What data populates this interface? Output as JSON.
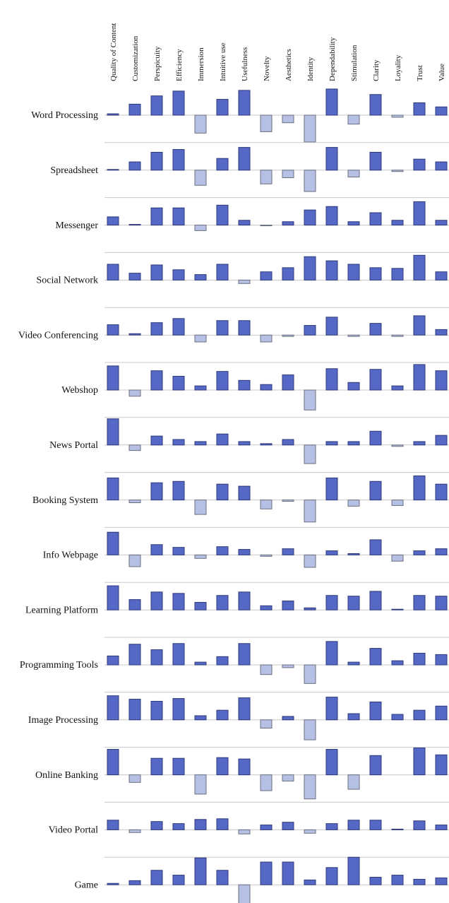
{
  "chart_data": {
    "type": "bar",
    "categories": [
      "Quality of Content",
      "Customization",
      "Perspicuity",
      "Efficiency",
      "Immersion",
      "Intuitive use",
      "Usefulness",
      "Novelty",
      "Aesthetics",
      "Identity",
      "Dependability",
      "Stimulation",
      "Clarity",
      "Loyality",
      "Trust",
      "Value"
    ],
    "color": "#5568c6",
    "negative_color": "#b5c0e4",
    "ylim": [
      -4,
      4
    ],
    "series": [
      {
        "name": "Word Processing",
        "values": [
          0.2,
          1.6,
          2.8,
          3.5,
          -2.6,
          2.3,
          3.6,
          -2.4,
          -1.1,
          -3.9,
          3.8,
          -1.3,
          3.0,
          -0.3,
          1.8,
          1.2
        ]
      },
      {
        "name": "Spreadsheet",
        "values": [
          0.1,
          1.2,
          2.6,
          3.0,
          -2.2,
          1.7,
          3.3,
          -2.0,
          -1.1,
          -3.1,
          3.3,
          -1.0,
          2.6,
          -0.2,
          1.6,
          1.2
        ]
      },
      {
        "name": "Messenger",
        "values": [
          1.2,
          0.1,
          2.5,
          2.5,
          -0.8,
          2.9,
          0.7,
          -0.1,
          0.5,
          2.2,
          2.7,
          0.5,
          1.8,
          0.7,
          3.4,
          0.7
        ]
      },
      {
        "name": "Social Network",
        "values": [
          2.3,
          1.0,
          2.2,
          1.5,
          0.8,
          2.3,
          -0.5,
          1.2,
          1.8,
          3.4,
          2.8,
          2.3,
          1.8,
          1.7,
          3.6,
          1.2
        ]
      },
      {
        "name": "Video Conferencing",
        "values": [
          1.5,
          0.2,
          1.8,
          2.4,
          -1.0,
          2.1,
          2.1,
          -1.0,
          -0.2,
          1.4,
          2.6,
          -0.2,
          1.7,
          -0.2,
          2.8,
          0.8
        ]
      },
      {
        "name": "Webshop",
        "values": [
          3.5,
          -0.9,
          2.8,
          2.0,
          0.6,
          2.7,
          1.4,
          0.8,
          2.2,
          -2.9,
          3.1,
          1.1,
          3.0,
          0.6,
          3.7,
          2.8
        ]
      },
      {
        "name": "News Portal",
        "values": [
          3.8,
          -0.8,
          1.3,
          0.8,
          0.5,
          1.6,
          0.5,
          0.2,
          0.8,
          -2.7,
          0.5,
          0.5,
          2.0,
          -0.2,
          0.5,
          1.4
        ]
      },
      {
        "name": "Booking System",
        "values": [
          3.2,
          -0.4,
          2.5,
          2.7,
          -2.1,
          2.3,
          2.0,
          -1.3,
          -0.2,
          -3.2,
          3.2,
          -0.9,
          2.7,
          -0.8,
          3.5,
          2.3
        ]
      },
      {
        "name": "Info Webpage",
        "values": [
          3.3,
          -1.7,
          1.5,
          1.1,
          -0.5,
          1.2,
          0.8,
          -0.2,
          0.9,
          -1.8,
          0.6,
          0.2,
          2.2,
          -0.9,
          0.6,
          0.9
        ]
      },
      {
        "name": "Learning Platform",
        "values": [
          3.5,
          1.5,
          2.6,
          2.4,
          1.1,
          2.1,
          2.6,
          0.6,
          1.3,
          0.3,
          2.1,
          2.0,
          2.7,
          0.1,
          2.1,
          2.0
        ]
      },
      {
        "name": "Programming Tools",
        "values": [
          1.3,
          3.0,
          2.2,
          3.1,
          0.4,
          1.2,
          3.1,
          -1.4,
          -0.4,
          -2.7,
          3.4,
          0.4,
          2.4,
          0.6,
          1.7,
          1.5
        ]
      },
      {
        "name": "Image Processing",
        "values": [
          3.5,
          3.0,
          2.7,
          3.1,
          0.6,
          1.4,
          3.2,
          -1.2,
          0.5,
          -2.9,
          3.3,
          0.9,
          2.6,
          0.8,
          1.4,
          2.0
        ]
      },
      {
        "name": "Online Banking",
        "values": [
          3.7,
          -1.1,
          2.4,
          2.4,
          -2.8,
          2.5,
          2.3,
          -2.3,
          -0.9,
          -3.5,
          3.7,
          -2.1,
          2.8,
          0.0,
          3.9,
          2.9
        ]
      },
      {
        "name": "Video Portal",
        "values": [
          1.4,
          -0.4,
          1.2,
          0.9,
          1.5,
          1.6,
          -0.6,
          0.7,
          1.1,
          -0.5,
          0.9,
          1.4,
          1.4,
          0.1,
          1.3,
          0.7
        ]
      },
      {
        "name": "Game",
        "values": [
          0.2,
          0.6,
          2.1,
          1.4,
          3.9,
          2.1,
          -3.0,
          3.3,
          3.3,
          0.7,
          2.5,
          4.0,
          1.1,
          1.4,
          0.8,
          1.0
        ]
      }
    ]
  }
}
